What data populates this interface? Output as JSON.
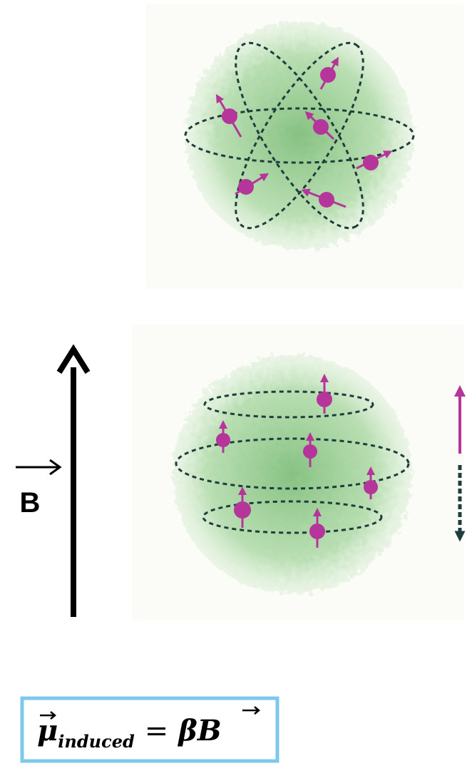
{
  "field_label": "B",
  "formula": {
    "moment": "μ",
    "subscript": "induced",
    "equals": "=",
    "coefficient": "β",
    "field": "B"
  }
}
